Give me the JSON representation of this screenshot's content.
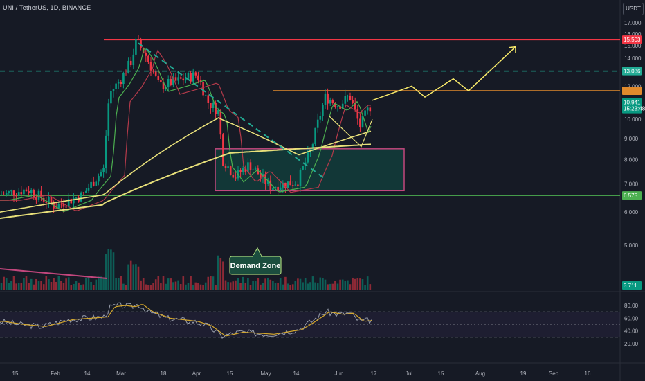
{
  "header": {
    "symbol": "UNI / TetherUS, 1D, BINANCE",
    "currency_button": "USDT"
  },
  "chart_data": {
    "type": "candlestick",
    "title": "UNI / TetherUS, 1D, BINANCE",
    "y_axis_ticks": [
      "17.000",
      "16.000",
      "15.000",
      "14.000",
      "12.000",
      "10.000",
      "9.000",
      "8.000",
      "7.000",
      "6.000",
      "5.000"
    ],
    "y_axis_values": [
      17,
      16,
      15,
      14,
      12,
      10,
      9,
      8,
      7,
      6,
      5
    ],
    "x_axis_ticks": [
      "15",
      "Feb",
      "14",
      "Mar",
      "18",
      "Apr",
      "15",
      "May",
      "14",
      "Jun",
      "17",
      "Jul",
      "15",
      "Aug",
      "19",
      "Sep",
      "16"
    ],
    "price_labels": [
      {
        "text": "15.503",
        "value": 15.503,
        "color": "#f23645"
      },
      {
        "text": "13.036",
        "value": 13.036,
        "color": "#22ab94"
      },
      {
        "text": "10.941",
        "value": 10.941,
        "color": "#089981"
      },
      {
        "text": "15:23:48",
        "color": "#089981"
      },
      {
        "text": "6.575",
        "value": 6.575,
        "color": "#4caf50"
      },
      {
        "text": "3.711",
        "value": 3.711,
        "color": "#089981"
      }
    ],
    "levels": [
      {
        "name": "resistance",
        "value": 15.503,
        "color": "#f23645",
        "style": "solid"
      },
      {
        "name": "dashed",
        "value": 13.036,
        "color": "#22ab94",
        "style": "dashed"
      },
      {
        "name": "orange",
        "value": 11.7,
        "color": "#e08a2c",
        "style": "solid"
      },
      {
        "name": "support",
        "value": 6.575,
        "color": "#4caf50",
        "style": "solid"
      }
    ],
    "demand_zone": {
      "label": "Demand Zone",
      "top": 8.5,
      "bottom": 6.75
    },
    "projection": [
      11.1,
      12.0,
      11.3,
      12.5,
      11.7,
      14.9
    ],
    "rsi": {
      "ticks": [
        "80.00",
        "60.00",
        "40.00",
        "20.00"
      ],
      "tick_values": [
        80,
        60,
        40,
        20
      ],
      "band_upper": 70,
      "band_lower": 30
    }
  }
}
